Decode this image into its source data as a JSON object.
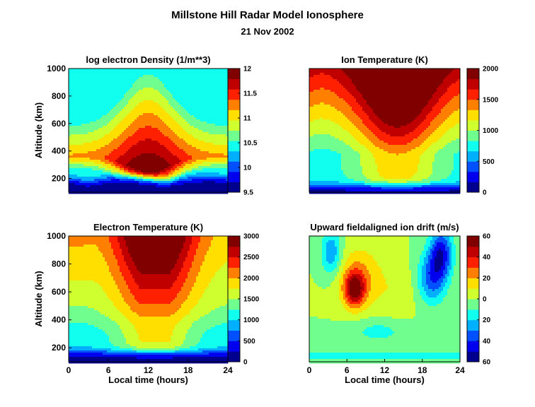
{
  "figure": {
    "title": "Millstone Hill Radar Model Ionosphere",
    "subtitle": "21  Nov 2002"
  },
  "colormap": [
    "#00008f",
    "#0000ef",
    "#0050ff",
    "#00b0ff",
    "#10ffef",
    "#70ff8f",
    "#d0ff30",
    "#ffdf00",
    "#ff8000",
    "#ff2000",
    "#c00000",
    "#800000"
  ],
  "chart_data": [
    {
      "type": "contour",
      "title": "log electron Density (1/m**3)",
      "xlabel": "",
      "ylabel": "Altitude (km)",
      "xlim": [
        0,
        24
      ],
      "ylim": [
        100,
        1000
      ],
      "xticks": [],
      "yticks": [
        "200",
        "400",
        "600",
        "800",
        "1000"
      ],
      "clim": [
        9.5,
        12
      ],
      "colorbar_ticks": [
        "9.5",
        "10",
        "10.5",
        "11",
        "11.5",
        "12"
      ],
      "model": "density"
    },
    {
      "type": "contour",
      "title": "Ion Temperature (K)",
      "xlabel": "",
      "ylabel": "",
      "xlim": [
        0,
        24
      ],
      "ylim": [
        100,
        1000
      ],
      "xticks": [],
      "yticks": [],
      "clim": [
        0,
        2000
      ],
      "colorbar_ticks": [
        "0",
        "500",
        "1000",
        "1500",
        "2000"
      ],
      "model": "ion_temp"
    },
    {
      "type": "contour",
      "title": "Electron Temperature (K)",
      "xlabel": "Local time (hours)",
      "ylabel": "Altitude (km)",
      "xlim": [
        0,
        24
      ],
      "ylim": [
        100,
        1000
      ],
      "xticks": [
        "0",
        "6",
        "12",
        "18",
        "24"
      ],
      "yticks": [
        "200",
        "400",
        "600",
        "800",
        "1000"
      ],
      "clim": [
        0,
        3000
      ],
      "colorbar_ticks": [
        "0",
        "500",
        "1000",
        "1500",
        "2000",
        "2500",
        "3000"
      ],
      "model": "electron_temp"
    },
    {
      "type": "contour",
      "title": "Upward fieldaligned ion drift (m/s)",
      "xlabel": "Local time (hours)",
      "ylabel": "",
      "xlim": [
        0,
        24
      ],
      "ylim": [
        100,
        1000
      ],
      "xticks": [
        "0",
        "6",
        "12",
        "18",
        "24"
      ],
      "yticks": [],
      "clim": [
        -60,
        60
      ],
      "colorbar_ticks": [
        "60",
        "40",
        "20",
        "0",
        "20",
        "40",
        "60"
      ],
      "model": "ion_drift"
    }
  ]
}
